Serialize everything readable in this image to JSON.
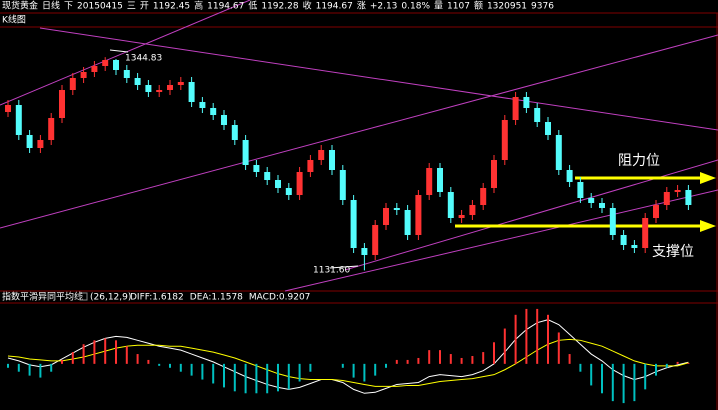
{
  "header": {
    "items": [
      {
        "text": "现货黄金",
        "color": "#ffffff"
      },
      {
        "text": "日线",
        "color": "#ffffff"
      },
      {
        "text": "下",
        "color": "#ffffff"
      },
      {
        "text": "20150415",
        "color": "#ffffff"
      },
      {
        "text": "三",
        "color": "#ffffff"
      },
      {
        "text": "开",
        "color": "#ffffff"
      },
      {
        "text": "1192.45",
        "color": "#54fcfc"
      },
      {
        "text": "高",
        "color": "#ffffff"
      },
      {
        "text": "1194.67",
        "color": "#ff5050"
      },
      {
        "text": "低",
        "color": "#ffffff"
      },
      {
        "text": "1192.28",
        "color": "#54fcfc"
      },
      {
        "text": "收",
        "color": "#ffffff"
      },
      {
        "text": "1194.67",
        "color": "#ff5050"
      },
      {
        "text": "涨",
        "color": "#ffffff"
      },
      {
        "text": "+2.13",
        "color": "#ff5050"
      },
      {
        "text": "0.18%",
        "color": "#ff5050"
      },
      {
        "text": "量",
        "color": "#ffffff"
      },
      {
        "text": "1107",
        "color": "#54fcfc"
      },
      {
        "text": "额",
        "color": "#ffffff"
      },
      {
        "text": "1320951",
        "color": "#ffffff"
      },
      {
        "text": "9376",
        "color": "#ffffff"
      }
    ]
  },
  "chart_data": [
    {
      "type": "candlestick",
      "title": "K线图",
      "ylim": [
        1112,
        1374
      ],
      "up_color": "#ff3232",
      "down_color": "#54fcfc",
      "open": [
        1290,
        1297,
        1267,
        1254,
        1262,
        1284,
        1312,
        1324,
        1330,
        1336,
        1342,
        1332,
        1324,
        1317,
        1310,
        1312,
        1317,
        1320,
        1300,
        1294,
        1287,
        1277,
        1262,
        1237,
        1230,
        1222,
        1214,
        1207,
        1230,
        1242,
        1252,
        1232,
        1202,
        1154,
        1147,
        1177,
        1194,
        1192,
        1167,
        1207,
        1234,
        1210,
        1184,
        1187,
        1197,
        1214,
        1242,
        1282,
        1305,
        1294,
        1280,
        1267,
        1232,
        1220,
        1204,
        1199,
        1194,
        1167,
        1157,
        1154,
        1184,
        1197,
        1210,
        1212
      ],
      "high": [
        1302,
        1302,
        1272,
        1267,
        1289,
        1317,
        1329,
        1335,
        1341,
        1344.83,
        1343,
        1337,
        1329,
        1322,
        1317,
        1322,
        1325,
        1325,
        1305,
        1299,
        1292,
        1282,
        1267,
        1242,
        1235,
        1227,
        1219,
        1235,
        1247,
        1257,
        1257,
        1237,
        1207,
        1159,
        1182,
        1199,
        1199,
        1197,
        1212,
        1239,
        1239,
        1215,
        1192,
        1202,
        1219,
        1247,
        1287,
        1310,
        1310,
        1299,
        1285,
        1272,
        1237,
        1225,
        1209,
        1204,
        1199,
        1172,
        1162,
        1189,
        1202,
        1215,
        1217,
        1217
      ],
      "low": [
        1285,
        1262,
        1249,
        1249,
        1257,
        1279,
        1307,
        1319,
        1325,
        1331,
        1327,
        1319,
        1312,
        1305,
        1305,
        1307,
        1312,
        1295,
        1289,
        1282,
        1272,
        1257,
        1232,
        1225,
        1217,
        1209,
        1202,
        1202,
        1225,
        1237,
        1227,
        1197,
        1149,
        1131.6,
        1142,
        1172,
        1187,
        1162,
        1162,
        1202,
        1205,
        1179,
        1179,
        1182,
        1192,
        1209,
        1237,
        1277,
        1289,
        1275,
        1262,
        1227,
        1215,
        1199,
        1194,
        1189,
        1162,
        1152,
        1149,
        1149,
        1179,
        1192,
        1205,
        1192
      ],
      "close": [
        1297,
        1267,
        1254,
        1262,
        1284,
        1312,
        1324,
        1330,
        1336,
        1342,
        1332,
        1324,
        1317,
        1310,
        1312,
        1317,
        1320,
        1300,
        1294,
        1287,
        1277,
        1262,
        1237,
        1230,
        1222,
        1214,
        1207,
        1230,
        1242,
        1252,
        1232,
        1202,
        1154,
        1147,
        1177,
        1194,
        1192,
        1167,
        1207,
        1234,
        1210,
        1184,
        1187,
        1197,
        1214,
        1242,
        1282,
        1305,
        1294,
        1280,
        1267,
        1232,
        1220,
        1204,
        1199,
        1194,
        1167,
        1157,
        1154,
        1184,
        1197,
        1210,
        1212,
        1197
      ],
      "annotations": [
        {
          "text": "1344.83"
        },
        {
          "text": "1131.60"
        },
        {
          "text": "阻力位"
        },
        {
          "text": "支撑位"
        }
      ]
    },
    {
      "type": "macd",
      "title": "指数平滑异同平均线",
      "params": "(26,12,9)",
      "ylim": [
        -45,
        60
      ],
      "series": [
        {
          "label": "DIFF:1.6182",
          "color": "#ffffff",
          "kind": "line",
          "values": [
            6,
            3,
            -1,
            -3,
            -1,
            5,
            11,
            17,
            22,
            26,
            28,
            27,
            24,
            21,
            18,
            16,
            14,
            10,
            6,
            2,
            -3,
            -8,
            -13,
            -17,
            -21,
            -24,
            -26,
            -24,
            -20,
            -16,
            -16,
            -19,
            -26,
            -30,
            -29,
            -25,
            -21,
            -20,
            -19,
            -13,
            -11,
            -12,
            -13,
            -11,
            -7,
            0,
            12,
            25,
            35,
            42,
            45,
            40,
            30,
            20,
            10,
            3,
            -6,
            -12,
            -16,
            -13,
            -8,
            -4,
            -1,
            1.6182
          ]
        },
        {
          "label": "DEA:1.1578",
          "color": "#ffff00",
          "kind": "line",
          "values": [
            8,
            7,
            5,
            4,
            3,
            3,
            5,
            7,
            10,
            13,
            16,
            18,
            19,
            19,
            19,
            18,
            18,
            16,
            14,
            12,
            9,
            6,
            2,
            -2,
            -6,
            -10,
            -13,
            -15,
            -16,
            -16,
            -16,
            -17,
            -19,
            -21,
            -23,
            -23,
            -23,
            -22,
            -22,
            -20,
            -18,
            -17,
            -16,
            -15,
            -13,
            -11,
            -6,
            0,
            7,
            14,
            20,
            24,
            25,
            24,
            21,
            18,
            13,
            8,
            3,
            0,
            -2,
            -2,
            -2,
            1.1578
          ]
        },
        {
          "label": "MACD:0.9207",
          "color": "#ff00ff",
          "kind": "histogram",
          "up_color": "#ff3232",
          "down_color": "#00c0c0",
          "values": [
            -4,
            -8,
            -12,
            -14,
            -8,
            4,
            12,
            20,
            24,
            26,
            24,
            18,
            10,
            4,
            -2,
            -4,
            -8,
            -12,
            -16,
            -20,
            -24,
            -28,
            -30,
            -30,
            -30,
            -28,
            -26,
            -18,
            -8,
            0,
            0,
            -4,
            -14,
            -18,
            -12,
            -4,
            4,
            4,
            6,
            14,
            14,
            10,
            6,
            8,
            12,
            22,
            36,
            50,
            56,
            56,
            50,
            32,
            10,
            -8,
            -22,
            -30,
            -38,
            -40,
            -38,
            -26,
            -12,
            -4,
            2,
            0.9207
          ]
        }
      ]
    }
  ]
}
